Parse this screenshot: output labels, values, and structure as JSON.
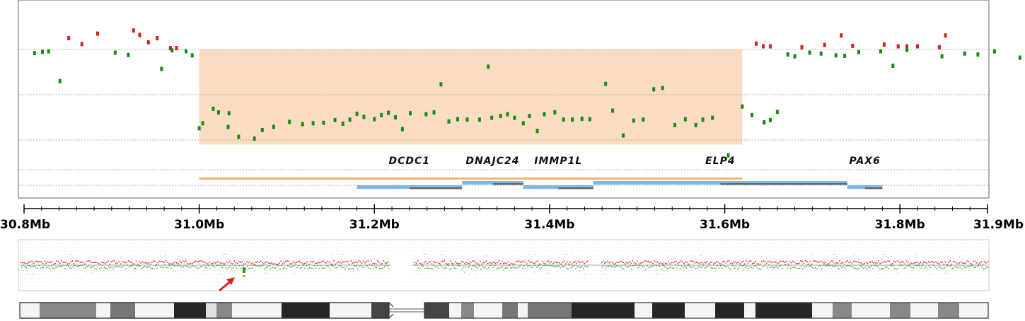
{
  "chart_data": {
    "type": "scatter",
    "title": "",
    "xlabel": "",
    "ylabel": "",
    "xlim": [
      30.8,
      31.9
    ],
    "x_unit": "Mb",
    "x_ticks": [
      {
        "value": 30.8,
        "label": "30.8Mb"
      },
      {
        "value": 31.0,
        "label": "31.0Mb"
      },
      {
        "value": 31.2,
        "label": "31.2Mb"
      },
      {
        "value": 31.4,
        "label": "31.4Mb"
      },
      {
        "value": 31.6,
        "label": "31.6Mb"
      },
      {
        "value": 31.8,
        "label": "31.8Mb"
      },
      {
        "value": 31.9,
        "label": "31.9Mb"
      }
    ],
    "ylim": [
      -2.5,
      2.5
    ],
    "grid_y": [
      1.0,
      0.0,
      -1.0
    ],
    "highlight_region": {
      "x_start": 31.0,
      "x_end": 31.62,
      "y_top": 0.0,
      "y_bottom": -1.1,
      "color": "#f9dcc1"
    },
    "series": [
      {
        "color": "#d42020",
        "points": [
          [
            30.851,
            1.25
          ],
          [
            30.866,
            1.12
          ],
          [
            30.884,
            1.35
          ],
          [
            30.925,
            1.42
          ],
          [
            30.932,
            1.32
          ],
          [
            30.942,
            1.16
          ],
          [
            30.952,
            1.25
          ],
          [
            30.967,
            1.03
          ],
          [
            30.974,
            1.03
          ],
          [
            31.636,
            1.13
          ],
          [
            31.644,
            1.07
          ],
          [
            31.652,
            1.07
          ],
          [
            31.688,
            1.05
          ],
          [
            31.714,
            1.1
          ],
          [
            31.746,
            1.08
          ],
          [
            31.733,
            1.31
          ],
          [
            31.782,
            1.11
          ],
          [
            31.798,
            1.07
          ],
          [
            31.808,
            1.07
          ],
          [
            31.82,
            1.07
          ],
          [
            31.845,
            1.05
          ],
          [
            31.852,
            1.31
          ],
          [
            31.968,
            1.4
          ]
        ]
      },
      {
        "color": "#1a8a1a",
        "points": [
          [
            30.812,
            0.92
          ],
          [
            30.821,
            0.95
          ],
          [
            30.828,
            0.96
          ],
          [
            30.841,
            0.3
          ],
          [
            30.904,
            0.93
          ],
          [
            30.919,
            0.88
          ],
          [
            30.957,
            0.57
          ],
          [
            30.969,
            0.98
          ],
          [
            30.985,
            0.96
          ],
          [
            30.992,
            0.87
          ],
          [
            31.0,
            -0.74
          ],
          [
            31.004,
            -0.63
          ],
          [
            31.016,
            -0.31
          ],
          [
            31.022,
            -0.39
          ],
          [
            31.034,
            -0.41
          ],
          [
            31.033,
            -0.71
          ],
          [
            31.045,
            -0.93
          ],
          [
            31.063,
            -0.97
          ],
          [
            31.072,
            -0.78
          ],
          [
            31.085,
            -0.71
          ],
          [
            31.103,
            -0.6
          ],
          [
            31.118,
            -0.65
          ],
          [
            31.13,
            -0.63
          ],
          [
            31.142,
            -0.62
          ],
          [
            31.155,
            -0.56
          ],
          [
            31.164,
            -0.64
          ],
          [
            31.172,
            -0.55
          ],
          [
            31.18,
            -0.42
          ],
          [
            31.188,
            -0.49
          ],
          [
            31.2,
            -0.54
          ],
          [
            31.208,
            -0.45
          ],
          [
            31.216,
            -0.4
          ],
          [
            31.224,
            -0.5
          ],
          [
            31.232,
            -0.76
          ],
          [
            31.241,
            -0.41
          ],
          [
            31.259,
            -0.43
          ],
          [
            31.268,
            -0.39
          ],
          [
            31.276,
            0.23
          ],
          [
            31.285,
            -0.59
          ],
          [
            31.295,
            -0.54
          ],
          [
            31.306,
            -0.55
          ],
          [
            31.32,
            -0.55
          ],
          [
            31.33,
            0.62
          ],
          [
            31.334,
            -0.51
          ],
          [
            31.344,
            -0.47
          ],
          [
            31.352,
            -0.43
          ],
          [
            31.36,
            -0.51
          ],
          [
            31.37,
            -0.63
          ],
          [
            31.377,
            -0.47
          ],
          [
            31.386,
            -0.8
          ],
          [
            31.394,
            -0.43
          ],
          [
            31.406,
            -0.39
          ],
          [
            31.416,
            -0.55
          ],
          [
            31.426,
            -0.55
          ],
          [
            31.437,
            -0.53
          ],
          [
            31.446,
            -0.54
          ],
          [
            31.464,
            0.24
          ],
          [
            31.472,
            -0.35
          ],
          [
            31.484,
            -0.9
          ],
          [
            31.496,
            -0.57
          ],
          [
            31.507,
            -0.55
          ],
          [
            31.519,
            0.12
          ],
          [
            31.529,
            0.15
          ],
          [
            31.543,
            -0.67
          ],
          [
            31.555,
            -0.54
          ],
          [
            31.567,
            -0.67
          ],
          [
            31.575,
            -0.55
          ],
          [
            31.586,
            -0.51
          ],
          [
            31.604,
            -1.34
          ],
          [
            31.62,
            -0.26
          ],
          [
            31.631,
            -0.45
          ],
          [
            31.645,
            -0.61
          ],
          [
            31.652,
            -0.56
          ],
          [
            31.66,
            -0.38
          ],
          [
            31.672,
            0.89
          ],
          [
            31.68,
            0.85
          ],
          [
            31.697,
            0.93
          ],
          [
            31.71,
            0.91
          ],
          [
            31.727,
            0.87
          ],
          [
            31.737,
            0.86
          ],
          [
            31.753,
            0.94
          ],
          [
            31.778,
            0.96
          ],
          [
            31.792,
            0.64
          ],
          [
            31.808,
            0.99
          ],
          [
            31.848,
            0.85
          ],
          [
            31.874,
            0.91
          ],
          [
            31.889,
            0.89
          ],
          [
            31.908,
            0.96
          ],
          [
            31.937,
            0.82
          ],
          [
            31.979,
            0.91
          ]
        ]
      }
    ],
    "genes": [
      {
        "name": "DCDC1",
        "start": 31.18,
        "end": 31.3
      },
      {
        "name": "DNAJC24",
        "start": 31.3,
        "end": 31.37
      },
      {
        "name": "IMMP1L",
        "start": 31.37,
        "end": 31.45
      },
      {
        "name": "ELP4",
        "start": 31.45,
        "end": 31.74
      },
      {
        "name": "PAX6",
        "start": 31.74,
        "end": 31.78
      }
    ],
    "region_bar": {
      "start": 31.0,
      "end": 31.62,
      "color": "#f2b36c"
    },
    "gene_bar_color": "#7fb6e8",
    "genome_overview": {
      "type": "scatter",
      "arrow_marker": true
    },
    "chromosome_ideogram": {
      "type": "ideogram"
    }
  }
}
